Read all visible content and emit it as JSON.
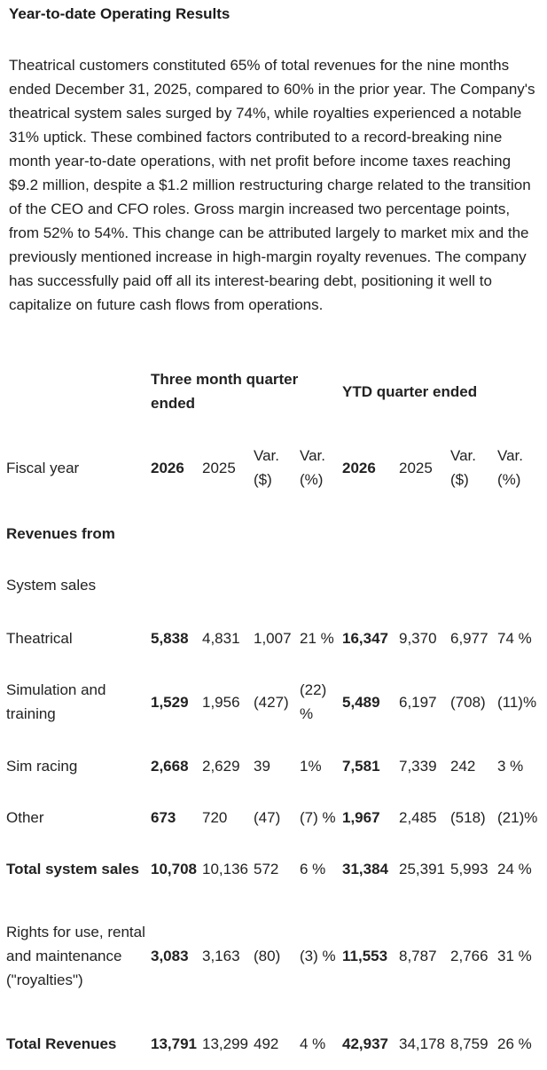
{
  "section": {
    "title": "Year-to-date Operating Results",
    "paragraph": "Theatrical customers constituted 65% of total revenues for the nine months ended December 31, 2025, compared to 60% in the prior year. The Company's theatrical system sales surged by 74%, while royalties experienced a notable 31% uptick. These combined factors contributed to a record-breaking nine month year-to-date operations, with net profit before income taxes reaching $9.2 million, despite a $1.2 million restructuring charge related to the transition of the CEO and CFO roles. Gross margin increased two percentage points, from 52% to 54%. This change can be attributed largely to market mix and the previously mentioned increase in high-margin royalty revenues. The company has successfully paid off all its interest-bearing debt, positioning it well to capitalize on future cash flows from operations."
  },
  "table": {
    "group_headers": {
      "three_month": "Three month quarter ended",
      "ytd": "YTD quarter ended"
    },
    "header": {
      "label": "Fiscal year",
      "q_2026": "2026",
      "q_2025": "2025",
      "q_var_d": "Var. ($)",
      "q_var_p": "Var. (%)",
      "y_2026": "2026",
      "y_2025": "2025",
      "y_var_d": "Var. ($)",
      "y_var_p": "Var. (%)"
    },
    "section_revenues": "Revenues from",
    "section_system": "System sales",
    "rows": [
      {
        "label": "Theatrical",
        "q26": "5,838",
        "q25": "4,831",
        "qvd": "1,007",
        "qvp": "21 %",
        "y26": "16,347",
        "y25": "9,370",
        "yvd": "6,977",
        "yvp": "74 %"
      },
      {
        "label": "Simulation and training",
        "q26": "1,529",
        "q25": "1,956",
        "qvd": "(427)",
        "qvp": "(22) %",
        "y26": "5,489",
        "y25": "6,197",
        "yvd": "(708)",
        "yvp": "(11)%"
      },
      {
        "label": "Sim racing",
        "q26": "2,668",
        "q25": "2,629",
        "qvd": "39",
        "qvp": "1%",
        "y26": "7,581",
        "y25": "7,339",
        "yvd": "242",
        "yvp": "3 %"
      },
      {
        "label": "Other",
        "q26": "673",
        "q25": "720",
        "qvd": "(47)",
        "qvp": "(7) %",
        "y26": "1,967",
        "y25": "2,485",
        "yvd": "(518)",
        "yvp": "(21)%"
      },
      {
        "label": "Total system sales",
        "q26": "10,708",
        "q25": "10,136",
        "qvd": "572",
        "qvp": "6 %",
        "y26": "31,384",
        "y25": "25,391",
        "yvd": "5,993",
        "yvp": "24 %"
      },
      {
        "label": "Rights for use, rental and maintenance (\"royalties\")",
        "q26": "3,083",
        "q25": "3,163",
        "qvd": "(80)",
        "qvp": "(3) %",
        "y26": "11,553",
        "y25": "8,787",
        "yvd": "2,766",
        "yvp": "31 %"
      },
      {
        "label": "Total Revenues",
        "q26": "13,791",
        "q25": "13,299",
        "qvd": "492",
        "qvp": "4 %",
        "y26": "42,937",
        "y25": "34,178",
        "yvd": "8,759",
        "yvp": "26 %"
      }
    ]
  }
}
